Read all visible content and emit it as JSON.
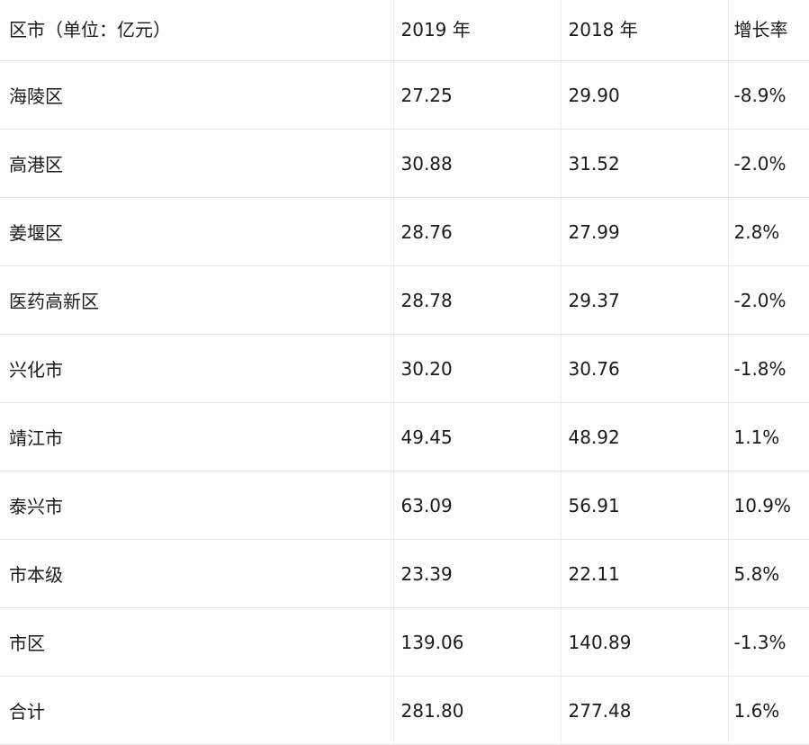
{
  "table": {
    "headers": [
      "区市（单位：亿元）",
      "2019 年",
      "2018 年",
      "增长率"
    ],
    "rows": [
      {
        "name": "海陵区",
        "y2019": "27.25",
        "y2018": "29.90",
        "growth": "-8.9%"
      },
      {
        "name": "高港区",
        "y2019": "30.88",
        "y2018": "31.52",
        "growth": "-2.0%"
      },
      {
        "name": "姜堰区",
        "y2019": "28.76",
        "y2018": "27.99",
        "growth": "2.8%"
      },
      {
        "name": "医药高新区",
        "y2019": "28.78",
        "y2018": "29.37",
        "growth": "-2.0%"
      },
      {
        "name": "兴化市",
        "y2019": "30.20",
        "y2018": "30.76",
        "growth": "-1.8%"
      },
      {
        "name": "靖江市",
        "y2019": "49.45",
        "y2018": "48.92",
        "growth": "1.1%"
      },
      {
        "name": "泰兴市",
        "y2019": "63.09",
        "y2018": "56.91",
        "growth": "10.9%"
      },
      {
        "name": "市本级",
        "y2019": "23.39",
        "y2018": "22.11",
        "growth": "5.8%"
      },
      {
        "name": "市区",
        "y2019": "139.06",
        "y2018": "140.89",
        "growth": "-1.3%"
      },
      {
        "name": "合计",
        "y2019": "281.80",
        "y2018": "277.48",
        "growth": "1.6%"
      }
    ]
  }
}
